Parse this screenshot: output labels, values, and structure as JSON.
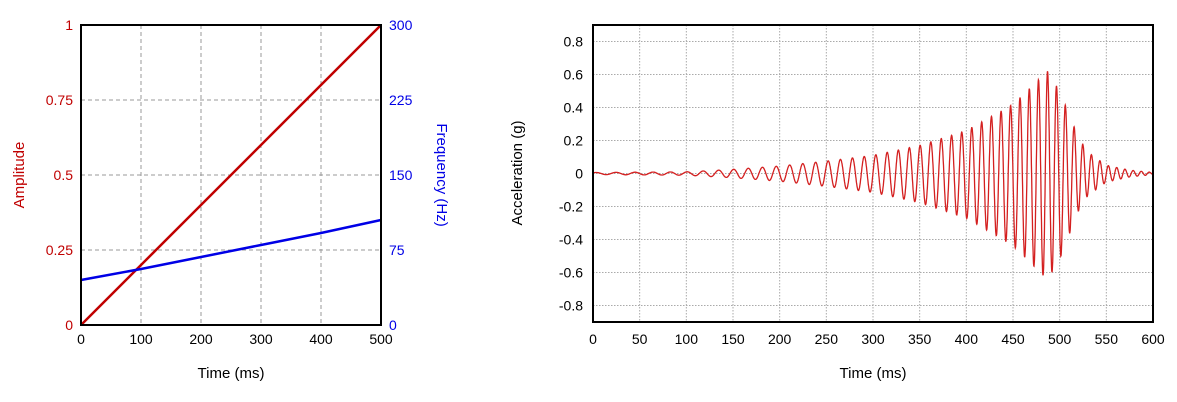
{
  "chart_data": [
    {
      "type": "line",
      "xlabel": "Time (ms)",
      "ylabel": "Amplitude",
      "y2label": "Frequency (Hz)",
      "xlim": [
        0,
        500
      ],
      "ylim": [
        0,
        1
      ],
      "y2lim": [
        0,
        300
      ],
      "xticks": [
        "0",
        "100",
        "200",
        "300",
        "400",
        "500"
      ],
      "yticks": [
        "0",
        "0.25",
        "0.5",
        "0.75",
        "1"
      ],
      "y2ticks": [
        "0",
        "75",
        "150",
        "225",
        "300"
      ],
      "grid": true,
      "series": [
        {
          "name": "Amplitude",
          "axis": "left",
          "color": "#c00000",
          "x": [
            0,
            100,
            200,
            300,
            400,
            500
          ],
          "y": [
            0,
            0.2,
            0.4,
            0.6,
            0.8,
            1.0
          ]
        },
        {
          "name": "Frequency (Hz)",
          "axis": "right",
          "color": "#0000e6",
          "x": [
            0,
            100,
            200,
            300,
            400,
            500
          ],
          "y": [
            45,
            56,
            68,
            80,
            92,
            105
          ]
        }
      ]
    },
    {
      "type": "line",
      "xlabel": "Time (ms)",
      "ylabel": "Acceleration (g)",
      "xlim": [
        0,
        600
      ],
      "ylim": [
        -0.9,
        0.9
      ],
      "xticks": [
        "0",
        "50",
        "100",
        "150",
        "200",
        "250",
        "300",
        "350",
        "400",
        "450",
        "500",
        "550",
        "600"
      ],
      "yticks": [
        "0.8",
        "0.6",
        "0.4",
        "0.2",
        "0",
        "-0.2",
        "-0.4",
        "-0.6",
        "-0.8"
      ],
      "grid": true,
      "color": "#d42020",
      "signal": "chirp",
      "frequency_hz": {
        "t_ms": [
          0,
          500
        ],
        "f": [
          45,
          105
        ]
      },
      "envelope": {
        "t_ms": [
          0,
          100,
          150,
          200,
          250,
          300,
          350,
          400,
          450,
          487,
          500,
          510,
          520,
          530,
          550,
          575,
          600
        ],
        "amplitude": [
          0.006,
          0.01,
          0.025,
          0.045,
          0.075,
          0.11,
          0.17,
          0.26,
          0.42,
          0.62,
          0.5,
          0.36,
          0.22,
          0.13,
          0.05,
          0.02,
          0.006
        ]
      },
      "peak_max": {
        "t_ms": 487,
        "value": 0.61
      },
      "peak_min": {
        "t_ms": 490,
        "value": -0.64
      }
    }
  ]
}
